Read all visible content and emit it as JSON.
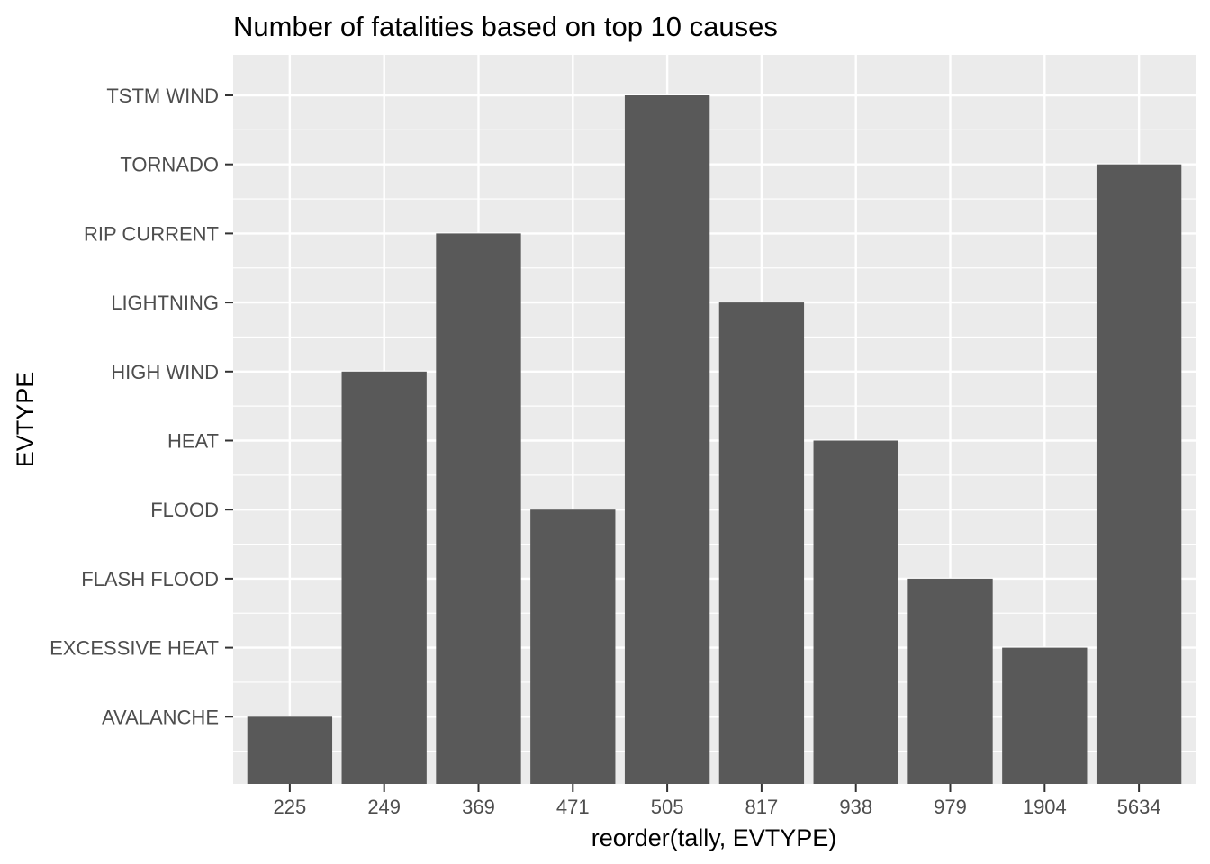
{
  "chart_data": {
    "type": "bar",
    "title": "Number of fatalities based on top 10 causes",
    "xlabel": "reorder(tally, EVTYPE)",
    "ylabel": "EVTYPE",
    "categories": [
      "225",
      "249",
      "369",
      "471",
      "505",
      "817",
      "938",
      "979",
      "1904",
      "5634"
    ],
    "y_levels": [
      "AVALANCHE",
      "EXCESSIVE HEAT",
      "FLASH FLOOD",
      "FLOOD",
      "HEAT",
      "HIGH WIND",
      "LIGHTNING",
      "RIP CURRENT",
      "TORNADO",
      "TSTM WIND"
    ],
    "values": [
      "AVALANCHE",
      "HIGH WIND",
      "RIP CURRENT",
      "FLOOD",
      "TSTM WIND",
      "LIGHTNING",
      "HEAT",
      "FLASH FLOOD",
      "EXCESSIVE HEAT",
      "TORNADO"
    ],
    "grid": true,
    "legend": "none",
    "colors": {
      "bar": "#595959",
      "panel": "#ebebeb",
      "grid": "#ffffff",
      "tick_text": "#4d4d4d",
      "tick_mark": "#333333"
    }
  }
}
